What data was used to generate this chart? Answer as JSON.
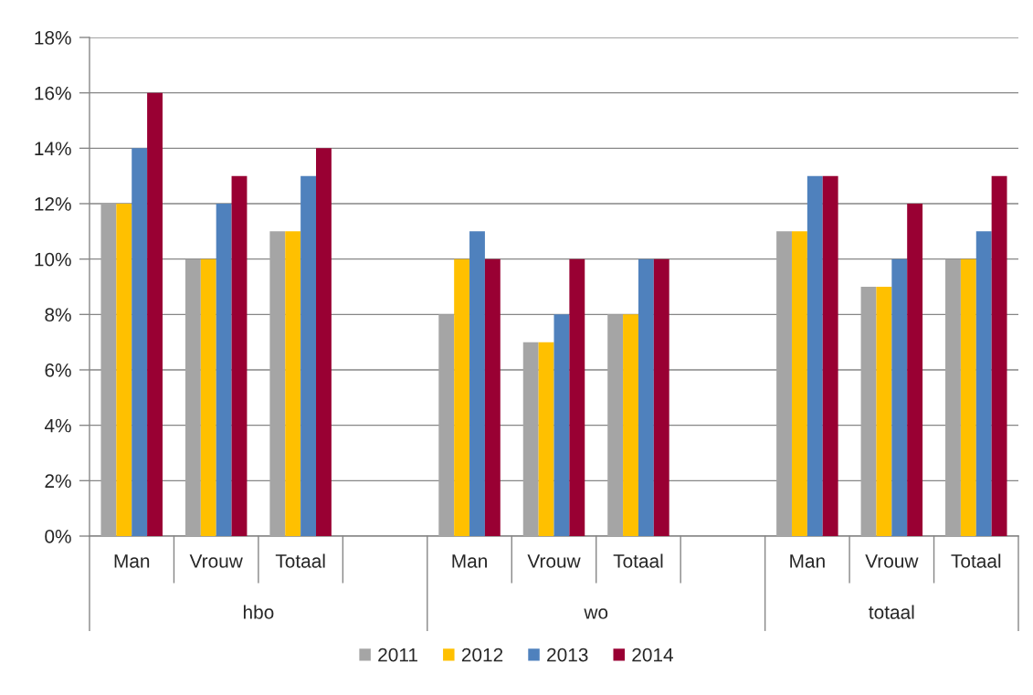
{
  "chart_data": {
    "type": "bar",
    "categories": [
      "Man",
      "Vrouw",
      "Totaal",
      null,
      "Man",
      "Vrouw",
      "Totaal",
      null,
      "Man",
      "Vrouw",
      "Totaal"
    ],
    "series": [
      {
        "name": "2011",
        "color": "#a5a5a5",
        "values": [
          12,
          10,
          11,
          null,
          8,
          7,
          8,
          null,
          11,
          9,
          10
        ]
      },
      {
        "name": "2012",
        "color": "#ffc000",
        "values": [
          12,
          10,
          11,
          null,
          10,
          7,
          8,
          null,
          11,
          9,
          10
        ]
      },
      {
        "name": "2013",
        "color": "#4f81bd",
        "values": [
          14,
          12,
          13,
          null,
          11,
          8,
          10,
          null,
          13,
          10,
          11
        ]
      },
      {
        "name": "2014",
        "color": "#990033",
        "values": [
          16,
          13,
          14,
          null,
          10,
          10,
          10,
          null,
          13,
          12,
          13
        ]
      }
    ],
    "ylim": [
      0,
      18
    ],
    "yticks": [
      {
        "value": 0,
        "label": "0%"
      },
      {
        "value": 2,
        "label": "2%"
      },
      {
        "value": 4,
        "label": "4%"
      },
      {
        "value": 6,
        "label": "6%"
      },
      {
        "value": 8,
        "label": "8%"
      },
      {
        "value": 10,
        "label": "10%"
      },
      {
        "value": 12,
        "label": "12%"
      },
      {
        "value": 14,
        "label": "14%"
      },
      {
        "value": 16,
        "label": "16%"
      },
      {
        "value": 18,
        "label": "18%"
      }
    ],
    "grid": "y",
    "legend": "bottom",
    "annotations": [
      "hbo",
      "wo",
      "totaal"
    ]
  }
}
